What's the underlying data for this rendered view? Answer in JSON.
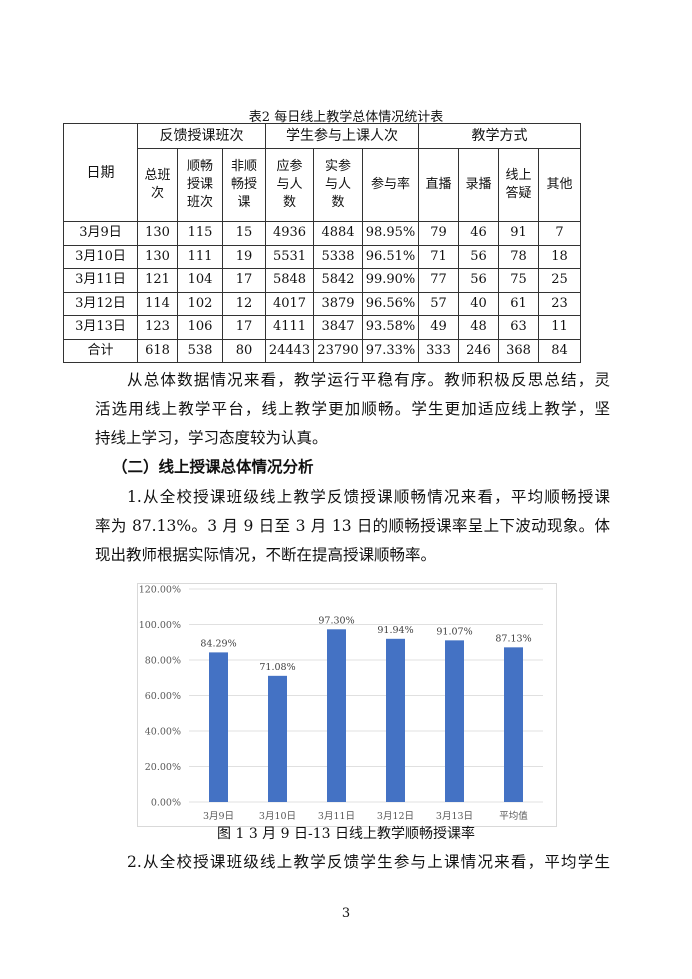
{
  "table": {
    "caption": "表2 每日线上教学总体情况统计表",
    "date_header": "日期",
    "groups": [
      "反馈授课班次",
      "学生参与上课人次",
      "教学方式"
    ],
    "subheaders": [
      "总班次",
      "顺畅授课班次",
      "非顺畅授课",
      "应参与人数",
      "实参与人数",
      "参与率",
      "直播",
      "录播",
      "线上答疑",
      "其他"
    ],
    "rows": [
      [
        "3月9日",
        "130",
        "115",
        "15",
        "4936",
        "4884",
        "98.95%",
        "79",
        "46",
        "91",
        "7"
      ],
      [
        "3月10日",
        "130",
        "111",
        "19",
        "5531",
        "5338",
        "96.51%",
        "71",
        "56",
        "78",
        "18"
      ],
      [
        "3月11日",
        "121",
        "104",
        "17",
        "5848",
        "5842",
        "99.90%",
        "77",
        "56",
        "75",
        "25"
      ],
      [
        "3月12日",
        "114",
        "102",
        "12",
        "4017",
        "3879",
        "96.56%",
        "57",
        "40",
        "61",
        "23"
      ],
      [
        "3月13日",
        "123",
        "106",
        "17",
        "4111",
        "3847",
        "93.58%",
        "49",
        "48",
        "63",
        "11"
      ],
      [
        "合计",
        "618",
        "538",
        "80",
        "24443",
        "23790",
        "97.33%",
        "333",
        "246",
        "368",
        "84"
      ]
    ]
  },
  "text": {
    "p1": [
      "从总体数据情况来看，教学运行平稳有序。教师积极反思总结，灵",
      "活选用线上教学平台，线上教学更加顺畅。学生更加适应线上教学，坚",
      "持线上学习，学习态度较为认真。"
    ],
    "heading": "（二）线上授课总体情况分析",
    "p2": [
      "1.从全校授课班级线上教学反馈授课顺畅情况来看，平均顺畅授课",
      "率为 87.13%。3 月 9 日至 3 月 13 日的顺畅授课率呈上下波动现象。体",
      "现出教师根据实际情况，不断在提高授课顺畅率。"
    ],
    "figure_caption": "图 1   3 月 9 日-13 日线上教学顺畅授课率",
    "p3": [
      "2.从全校授课班级线上教学反馈学生参与上课情况来看，平均学生"
    ],
    "page_number": "3"
  },
  "chart_data": {
    "type": "bar",
    "categories": [
      "3月9日",
      "3月10日",
      "3月11日",
      "3月12日",
      "3月13日",
      "平均值"
    ],
    "values": [
      84.29,
      71.08,
      97.3,
      91.94,
      91.07,
      87.13
    ],
    "data_labels": [
      "84.29%",
      "71.08%",
      "97.30%",
      "91.94%",
      "91.07%",
      "87.13%"
    ],
    "yticks": [
      "0.00%",
      "20.00%",
      "40.00%",
      "60.00%",
      "80.00%",
      "100.00%",
      "120.00%"
    ],
    "ylim": [
      0,
      120
    ],
    "grid": true,
    "bar_color": "#4472C4"
  }
}
